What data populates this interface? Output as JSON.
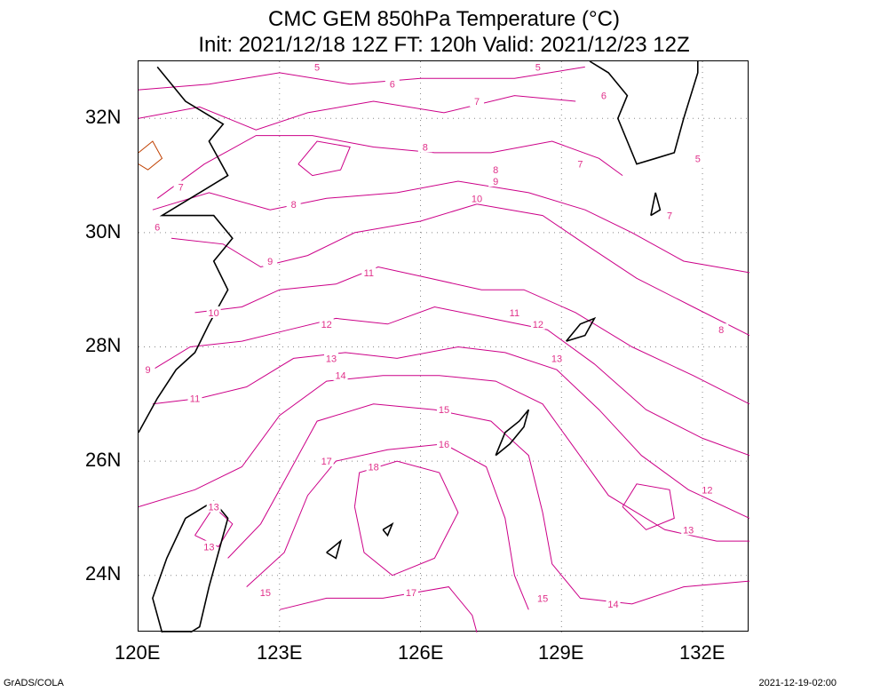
{
  "title": {
    "line1": "CMC GEM 850hPa Temperature (°C)",
    "line2": "Init: 2021/12/18 12Z  FT: 120h  Valid: 2021/12/23 12Z"
  },
  "axes": {
    "lat_labels": [
      "32N",
      "30N",
      "28N",
      "26N",
      "24N"
    ],
    "lon_labels": [
      "120E",
      "123E",
      "126E",
      "129E",
      "132E"
    ]
  },
  "footer": {
    "left": "GrADS/COLA",
    "right": "2021-12-19-02:00"
  },
  "colors": {
    "contour": "#cc0088",
    "contour_label": "#e0308a",
    "cold_contour": "#c04000",
    "coast": "#000000",
    "grid": "#888888"
  },
  "contour_labels": [
    {
      "text": "5",
      "lon": 123.8,
      "lat": 32.9
    },
    {
      "text": "6",
      "lon": 125.4,
      "lat": 32.6
    },
    {
      "text": "7",
      "lon": 127.2,
      "lat": 32.3
    },
    {
      "text": "8",
      "lon": 126.1,
      "lat": 31.5
    },
    {
      "text": "7",
      "lon": 120.9,
      "lat": 30.8
    },
    {
      "text": "8",
      "lon": 123.3,
      "lat": 30.5
    },
    {
      "text": "6",
      "lon": 120.4,
      "lat": 30.1
    },
    {
      "text": "9",
      "lon": 122.8,
      "lat": 29.5
    },
    {
      "text": "10",
      "lon": 121.6,
      "lat": 28.6
    },
    {
      "text": "11",
      "lon": 124.9,
      "lat": 29.3
    },
    {
      "text": "12",
      "lon": 124.0,
      "lat": 28.4
    },
    {
      "text": "13",
      "lon": 124.1,
      "lat": 27.8
    },
    {
      "text": "14",
      "lon": 124.3,
      "lat": 27.5
    },
    {
      "text": "9",
      "lon": 120.2,
      "lat": 27.6
    },
    {
      "text": "11",
      "lon": 121.2,
      "lat": 27.1
    },
    {
      "text": "15",
      "lon": 126.5,
      "lat": 26.9
    },
    {
      "text": "16",
      "lon": 126.5,
      "lat": 26.3
    },
    {
      "text": "17",
      "lon": 124.0,
      "lat": 26.0
    },
    {
      "text": "18",
      "lon": 125.0,
      "lat": 25.9
    },
    {
      "text": "13",
      "lon": 121.6,
      "lat": 25.2
    },
    {
      "text": "13",
      "lon": 121.5,
      "lat": 24.5
    },
    {
      "text": "15",
      "lon": 122.7,
      "lat": 23.7
    },
    {
      "text": "17",
      "lon": 125.8,
      "lat": 23.7
    },
    {
      "text": "15",
      "lon": 128.6,
      "lat": 23.6
    },
    {
      "text": "14",
      "lon": 130.1,
      "lat": 23.5
    },
    {
      "text": "13",
      "lon": 131.7,
      "lat": 24.8
    },
    {
      "text": "12",
      "lon": 132.1,
      "lat": 25.5
    },
    {
      "text": "8",
      "lon": 132.4,
      "lat": 28.3
    },
    {
      "text": "11",
      "lon": 128.0,
      "lat": 28.6
    },
    {
      "text": "12",
      "lon": 128.5,
      "lat": 28.4
    },
    {
      "text": "13",
      "lon": 128.9,
      "lat": 27.8
    },
    {
      "text": "10",
      "lon": 127.2,
      "lat": 30.6
    },
    {
      "text": "9",
      "lon": 127.6,
      "lat": 30.9
    },
    {
      "text": "8",
      "lon": 127.6,
      "lat": 31.1
    },
    {
      "text": "7",
      "lon": 129.4,
      "lat": 31.2
    },
    {
      "text": "6",
      "lon": 129.9,
      "lat": 32.4
    },
    {
      "text": "5",
      "lon": 131.9,
      "lat": 31.3
    },
    {
      "text": "7",
      "lon": 131.3,
      "lat": 30.3
    },
    {
      "text": "5",
      "lon": 128.5,
      "lat": 32.9
    }
  ]
}
